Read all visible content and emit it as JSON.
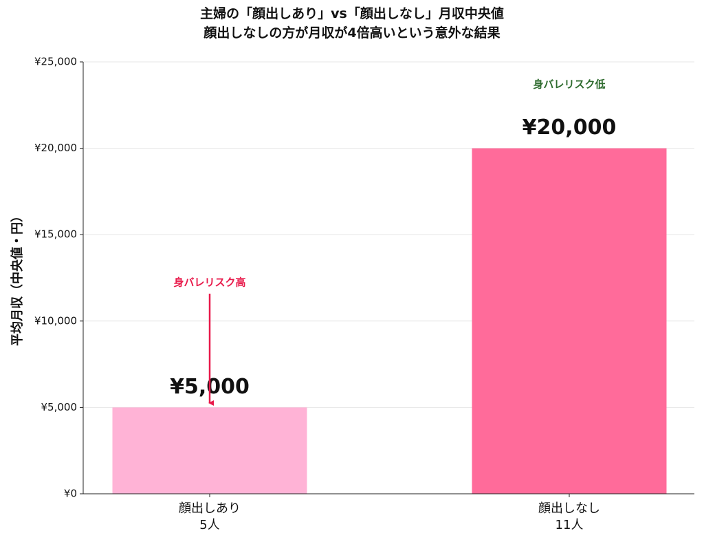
{
  "chart_data": {
    "type": "bar",
    "title": "主婦の「顔出しあり」vs「顔出しなし」月収中央値\n顔出しなしの方が月収が4倍高いという意外な結果",
    "y_label": "平均月収（中央値・円）",
    "categories": [
      "顔出しあり\n5人",
      "顔出しなし\n11人"
    ],
    "values": [
      5000,
      20000
    ],
    "value_labels": [
      "¥5,000",
      "¥20,000"
    ],
    "colors": [
      "#ffb3d6",
      "#ff6b9a"
    ],
    "annotations": [
      {
        "text": "身バレリスク高",
        "color": "#e8194a"
      },
      {
        "text": "身バレリスク低",
        "color": "#2e6b2e"
      }
    ],
    "ylim": [
      0,
      25000
    ],
    "yticks": [
      {
        "value": 0,
        "label": "¥0"
      },
      {
        "value": 5000,
        "label": "¥5,000"
      },
      {
        "value": 10000,
        "label": "¥10,000"
      },
      {
        "value": 15000,
        "label": "¥15,000"
      },
      {
        "value": 20000,
        "label": "¥20,000"
      },
      {
        "value": 25000,
        "label": "¥25,000"
      }
    ],
    "grid": true
  }
}
